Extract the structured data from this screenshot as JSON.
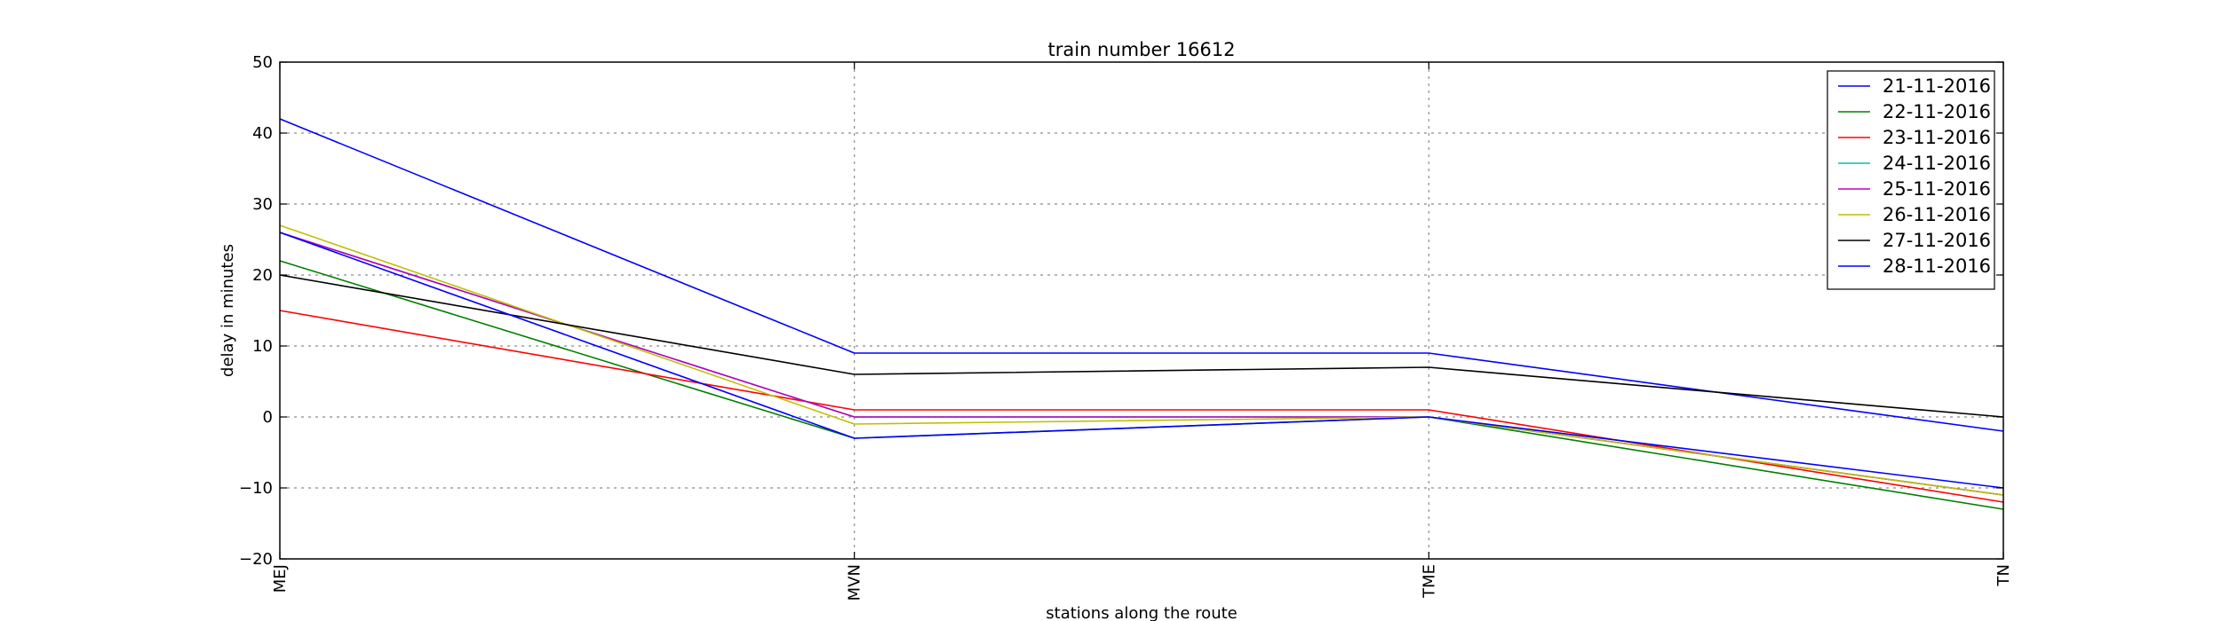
{
  "chart_data": {
    "type": "line",
    "title": "train number 16612",
    "xlabel": "stations along the route",
    "ylabel": "delay in minutes",
    "categories": [
      "MEJ",
      "MVN",
      "TME",
      "TN"
    ],
    "ylim": [
      -20,
      50
    ],
    "yticks": [
      -20,
      -10,
      0,
      10,
      20,
      30,
      40,
      50
    ],
    "yticklabels": [
      "−20",
      "−10",
      "0",
      "10",
      "20",
      "30",
      "40",
      "50"
    ],
    "grid": true,
    "legend_position": "top-right",
    "series": [
      {
        "name": "21-11-2016",
        "color": "#0000ff",
        "values": [
          42,
          9,
          9,
          -2
        ]
      },
      {
        "name": "22-11-2016",
        "color": "#008000",
        "values": [
          22,
          -3,
          0,
          -13
        ]
      },
      {
        "name": "23-11-2016",
        "color": "#ff0000",
        "values": [
          15,
          1,
          1,
          -12
        ]
      },
      {
        "name": "24-11-2016",
        "color": "#00bfbf",
        "values": [
          26,
          0,
          0,
          -11
        ]
      },
      {
        "name": "25-11-2016",
        "color": "#bf00bf",
        "values": [
          26,
          0,
          0,
          -11
        ]
      },
      {
        "name": "26-11-2016",
        "color": "#bfbf00",
        "values": [
          27,
          -1,
          0,
          -11
        ]
      },
      {
        "name": "27-11-2016",
        "color": "#000000",
        "values": [
          20,
          6,
          7,
          0
        ]
      },
      {
        "name": "28-11-2016",
        "color": "#0000ff",
        "values": [
          26,
          -3,
          0,
          -10
        ]
      }
    ]
  }
}
